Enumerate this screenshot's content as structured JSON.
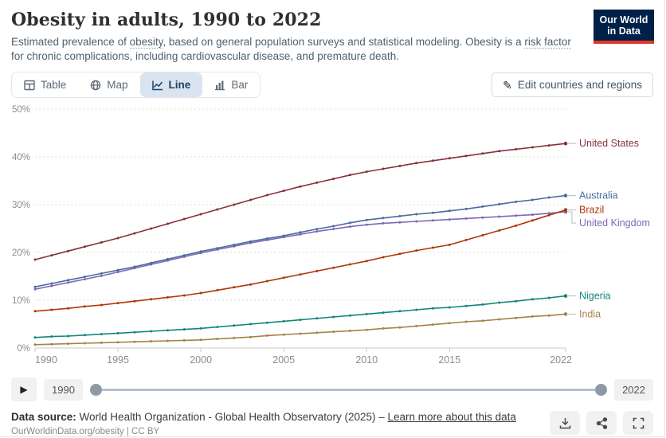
{
  "header": {
    "title": "Obesity in adults, 1990 to 2022",
    "subtitle_pre": "Estimated prevalence of ",
    "subtitle_link1": "obesity",
    "subtitle_mid": ", based on general population surveys and statistical modeling. Obesity is a ",
    "subtitle_link2": "risk factor",
    "subtitle_post": " for chronic complications, including cardiovascular disease, and premature death.",
    "logo": {
      "line1": "Our World",
      "line2": "in Data",
      "bg": "#002147",
      "accent": "#e5332d"
    }
  },
  "toolbar": {
    "tabs": [
      {
        "label": "Table",
        "icon": "table-icon",
        "active": false
      },
      {
        "label": "Map",
        "icon": "globe-icon",
        "active": false
      },
      {
        "label": "Line",
        "icon": "line-chart-icon",
        "active": true
      },
      {
        "label": "Bar",
        "icon": "bar-chart-icon",
        "active": false
      }
    ],
    "edit_button": "Edit countries and regions"
  },
  "chart_data": {
    "type": "line",
    "title": "Obesity in adults, 1990 to 2022",
    "ylabel": "",
    "xlabel": "",
    "ylim": [
      0,
      50
    ],
    "ytick_labels": [
      "0%",
      "10%",
      "20%",
      "30%",
      "40%",
      "50%"
    ],
    "yticks": [
      0,
      10,
      20,
      30,
      40,
      50
    ],
    "xticks": [
      1990,
      1995,
      2000,
      2005,
      2010,
      2015,
      2022
    ],
    "grid": "dashed-horizontal",
    "legend_position": "right-entity-labels",
    "x": [
      1990,
      1991,
      1992,
      1993,
      1994,
      1995,
      1996,
      1997,
      1998,
      1999,
      2000,
      2001,
      2002,
      2003,
      2004,
      2005,
      2006,
      2007,
      2008,
      2009,
      2010,
      2011,
      2012,
      2013,
      2014,
      2015,
      2016,
      2017,
      2018,
      2019,
      2020,
      2021,
      2022
    ],
    "series": [
      {
        "name": "United States",
        "color": "#883039",
        "values": [
          18.5,
          19.4,
          20.3,
          21.2,
          22.1,
          23.0,
          24.0,
          25.0,
          26.0,
          27.0,
          28.0,
          29.0,
          30.0,
          31.0,
          32.0,
          32.9,
          33.8,
          34.6,
          35.4,
          36.2,
          36.9,
          37.5,
          38.1,
          38.7,
          39.2,
          39.7,
          40.2,
          40.7,
          41.2,
          41.6,
          42.0,
          42.4,
          42.8
        ]
      },
      {
        "name": "Australia",
        "color": "#4c6a9c",
        "values": [
          12.8,
          13.5,
          14.2,
          14.9,
          15.6,
          16.3,
          17.0,
          17.8,
          18.6,
          19.4,
          20.2,
          20.9,
          21.6,
          22.3,
          22.9,
          23.5,
          24.2,
          24.9,
          25.5,
          26.2,
          26.8,
          27.2,
          27.6,
          28.0,
          28.3,
          28.7,
          29.1,
          29.6,
          30.1,
          30.6,
          31.0,
          31.5,
          31.9
        ]
      },
      {
        "name": "Brazil",
        "color": "#b13507",
        "values": [
          7.7,
          8.0,
          8.3,
          8.7,
          9.0,
          9.4,
          9.8,
          10.2,
          10.6,
          11.0,
          11.5,
          12.1,
          12.7,
          13.3,
          14.0,
          14.7,
          15.4,
          16.1,
          16.8,
          17.5,
          18.2,
          19.0,
          19.7,
          20.4,
          21.0,
          21.6,
          22.6,
          23.6,
          24.6,
          25.6,
          26.7,
          27.8,
          28.9
        ]
      },
      {
        "name": "United Kingdom",
        "color": "#7c68b8",
        "values": [
          12.3,
          13.0,
          13.7,
          14.4,
          15.1,
          15.9,
          16.7,
          17.5,
          18.3,
          19.1,
          19.9,
          20.6,
          21.3,
          22.0,
          22.6,
          23.2,
          23.8,
          24.4,
          24.9,
          25.4,
          25.8,
          26.1,
          26.3,
          26.5,
          26.7,
          26.9,
          27.1,
          27.3,
          27.5,
          27.7,
          27.9,
          28.2,
          28.5
        ]
      },
      {
        "name": "Nigeria",
        "color": "#12867a",
        "values": [
          2.2,
          2.4,
          2.5,
          2.7,
          2.9,
          3.1,
          3.3,
          3.5,
          3.7,
          3.9,
          4.1,
          4.4,
          4.7,
          5.0,
          5.3,
          5.6,
          5.9,
          6.2,
          6.5,
          6.8,
          7.1,
          7.4,
          7.7,
          8.0,
          8.3,
          8.5,
          8.8,
          9.1,
          9.5,
          9.8,
          10.2,
          10.5,
          10.9
        ]
      },
      {
        "name": "India",
        "color": "#a6824a",
        "values": [
          0.7,
          0.8,
          0.9,
          1.0,
          1.1,
          1.2,
          1.3,
          1.4,
          1.5,
          1.6,
          1.7,
          1.9,
          2.1,
          2.3,
          2.6,
          2.8,
          3.0,
          3.2,
          3.4,
          3.6,
          3.8,
          4.1,
          4.3,
          4.6,
          4.9,
          5.2,
          5.5,
          5.7,
          6.0,
          6.3,
          6.6,
          6.8,
          7.1
        ]
      }
    ]
  },
  "timeline": {
    "start_year": "1990",
    "end_year": "2022"
  },
  "footer": {
    "datasource_label": "Data source:",
    "datasource_text": "World Health Organization - Global Health Observatory (2025) –",
    "link": "Learn more about this data",
    "attribution": "OurWorldinData.org/obesity | CC BY",
    "actions": [
      "download",
      "share",
      "fullscreen"
    ]
  }
}
